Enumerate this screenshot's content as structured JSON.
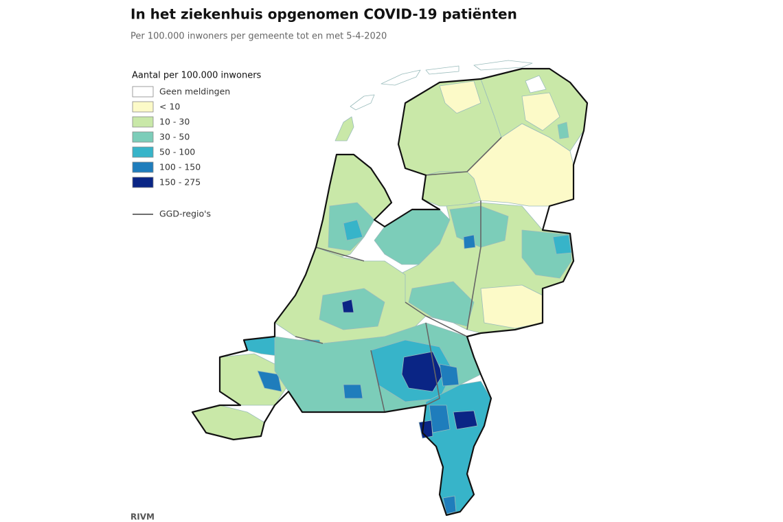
{
  "header": {
    "title": "In het ziekenhuis opgenomen COVID-19 patiënten",
    "subtitle": "Per 100.000 inwoners per gemeente tot en met 5-4-2020"
  },
  "legend": {
    "title": "Aantal per 100.000 inwoners",
    "items": [
      {
        "label": "Geen meldingen",
        "color": "#ffffff"
      },
      {
        "label": "< 10",
        "color": "#fcfac8"
      },
      {
        "label": "10 - 30",
        "color": "#c9e8a8"
      },
      {
        "label": "30 - 50",
        "color": "#7ccdb9"
      },
      {
        "label": "50 - 100",
        "color": "#37b4c9"
      },
      {
        "label": "100 - 150",
        "color": "#1f7dbc"
      },
      {
        "label": "150 - 275",
        "color": "#0a2585"
      }
    ],
    "ggd_label": "GGD-regio's",
    "ggd_color": "#6e6e6e"
  },
  "source": "RIVM"
}
